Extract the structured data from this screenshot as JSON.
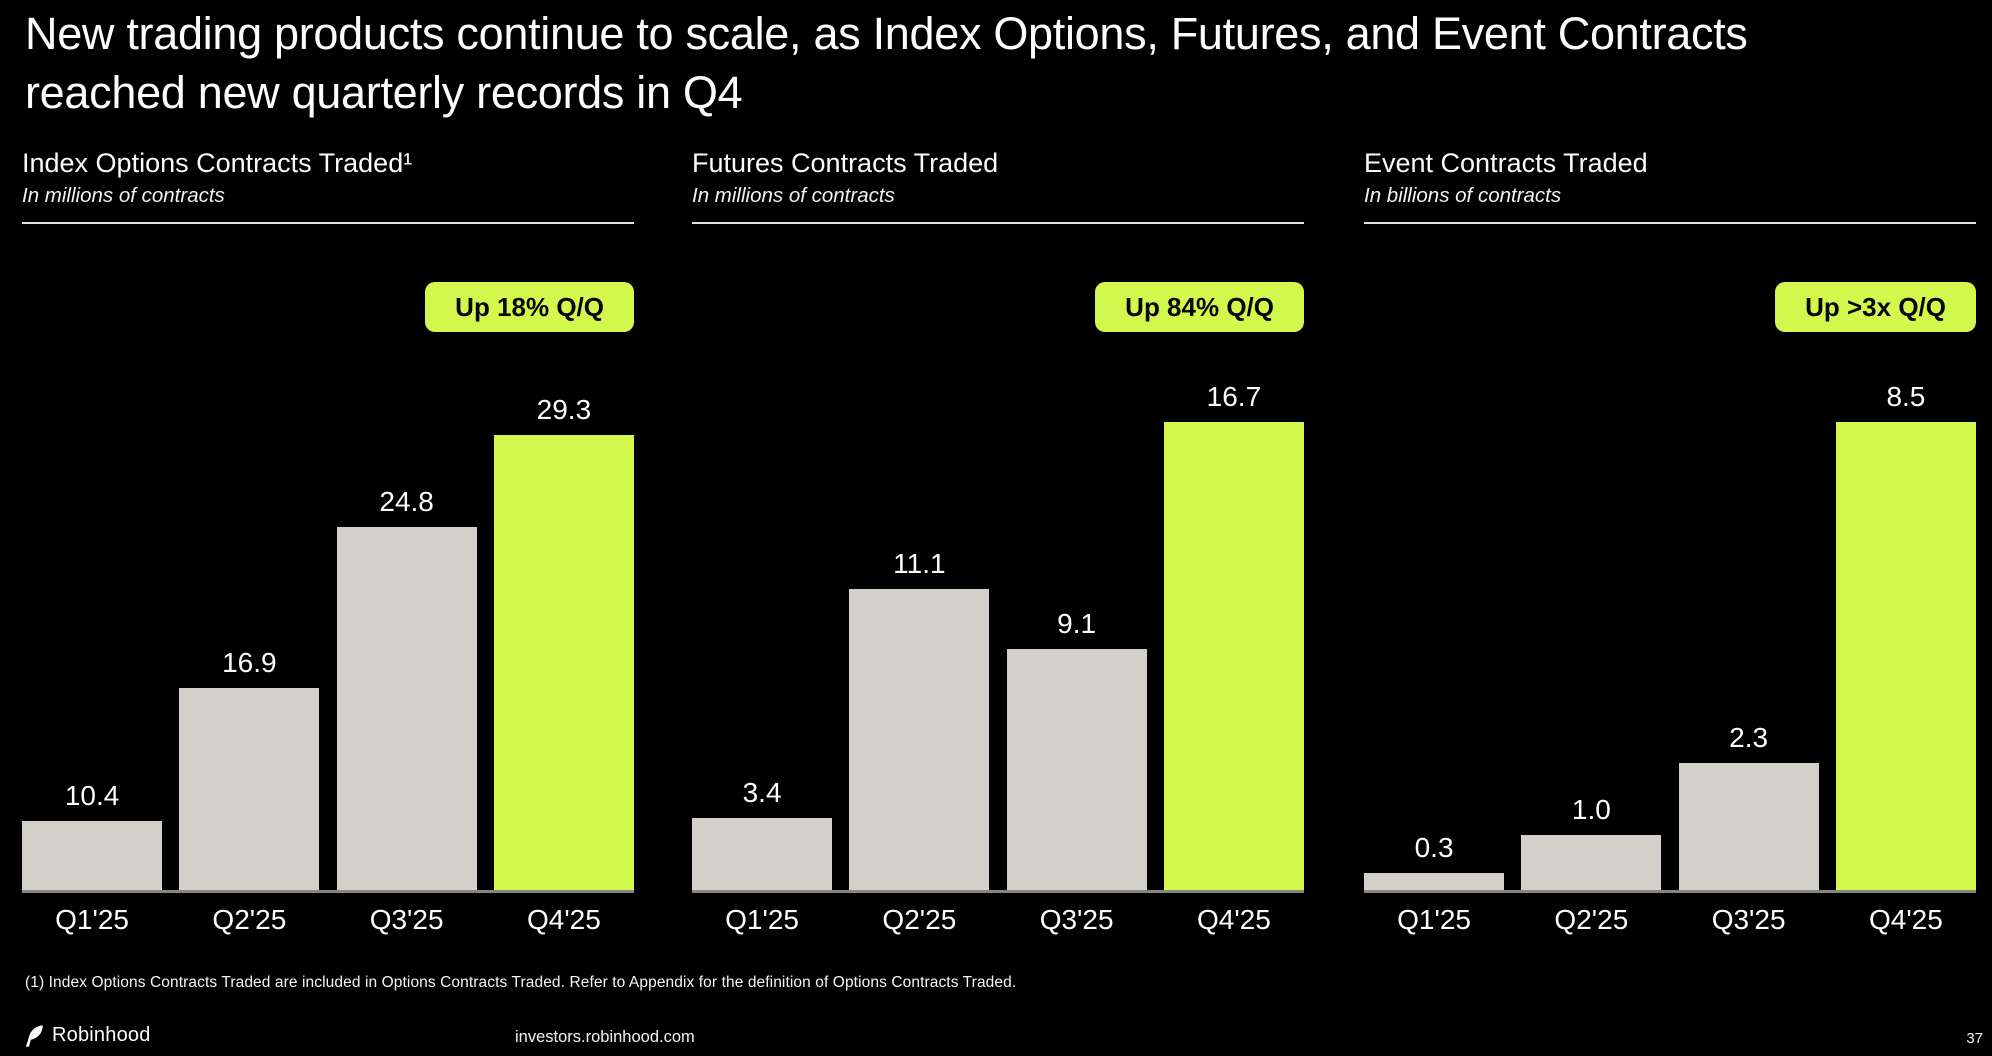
{
  "slide": {
    "title": "New trading products continue to scale, as Index Options, Futures, and Event Contracts\nreached new quarterly records in Q4",
    "footnote": "(1) Index Options Contracts Traded are included in Options Contracts Traded. Refer to Appendix for the definition of Options Contracts Traded.",
    "footer": {
      "brand": "Robinhood",
      "url": "investors.robinhood.com",
      "page_number": "37"
    }
  },
  "colors": {
    "background": "#000000",
    "accent_lime": "#d2f84e",
    "bar_gray": "#d3d0ca",
    "axis_line": "#868680",
    "badge_text": "#060606"
  },
  "chart_data": [
    {
      "type": "bar",
      "title": "Index Options Contracts Traded¹",
      "subtitle": "In millions of contracts",
      "badge": "Up 18% Q/Q",
      "categories": [
        "Q1'25",
        "Q2'25",
        "Q3'25",
        "Q4'25"
      ],
      "values": [
        10.4,
        16.9,
        24.8,
        29.3
      ],
      "value_labels": [
        "10.4",
        "16.9",
        "24.8",
        "29.3"
      ],
      "ylim": [
        7,
        29.3
      ],
      "highlight_index": 3,
      "grid": false,
      "legend": "none"
    },
    {
      "type": "bar",
      "title": "Futures Contracts Traded",
      "subtitle": "In millions of contracts",
      "badge": "Up 84% Q/Q",
      "categories": [
        "Q1'25",
        "Q2'25",
        "Q3'25",
        "Q4'25"
      ],
      "values": [
        3.4,
        11.1,
        9.1,
        16.7
      ],
      "value_labels": [
        "3.4",
        "11.1",
        "9.1",
        "16.7"
      ],
      "ylim": [
        1,
        16.7
      ],
      "highlight_index": 3,
      "grid": false,
      "legend": "none"
    },
    {
      "type": "bar",
      "title": "Event Contracts Traded",
      "subtitle": "In billions of contracts",
      "badge": "Up >3x Q/Q",
      "categories": [
        "Q1'25",
        "Q2'25",
        "Q3'25",
        "Q4'25"
      ],
      "values": [
        0.3,
        1.0,
        2.3,
        8.5
      ],
      "value_labels": [
        "0.3",
        "1.0",
        "2.3",
        "8.5"
      ],
      "ylim": [
        0,
        8.5
      ],
      "highlight_index": 3,
      "grid": false,
      "legend": "none"
    }
  ]
}
